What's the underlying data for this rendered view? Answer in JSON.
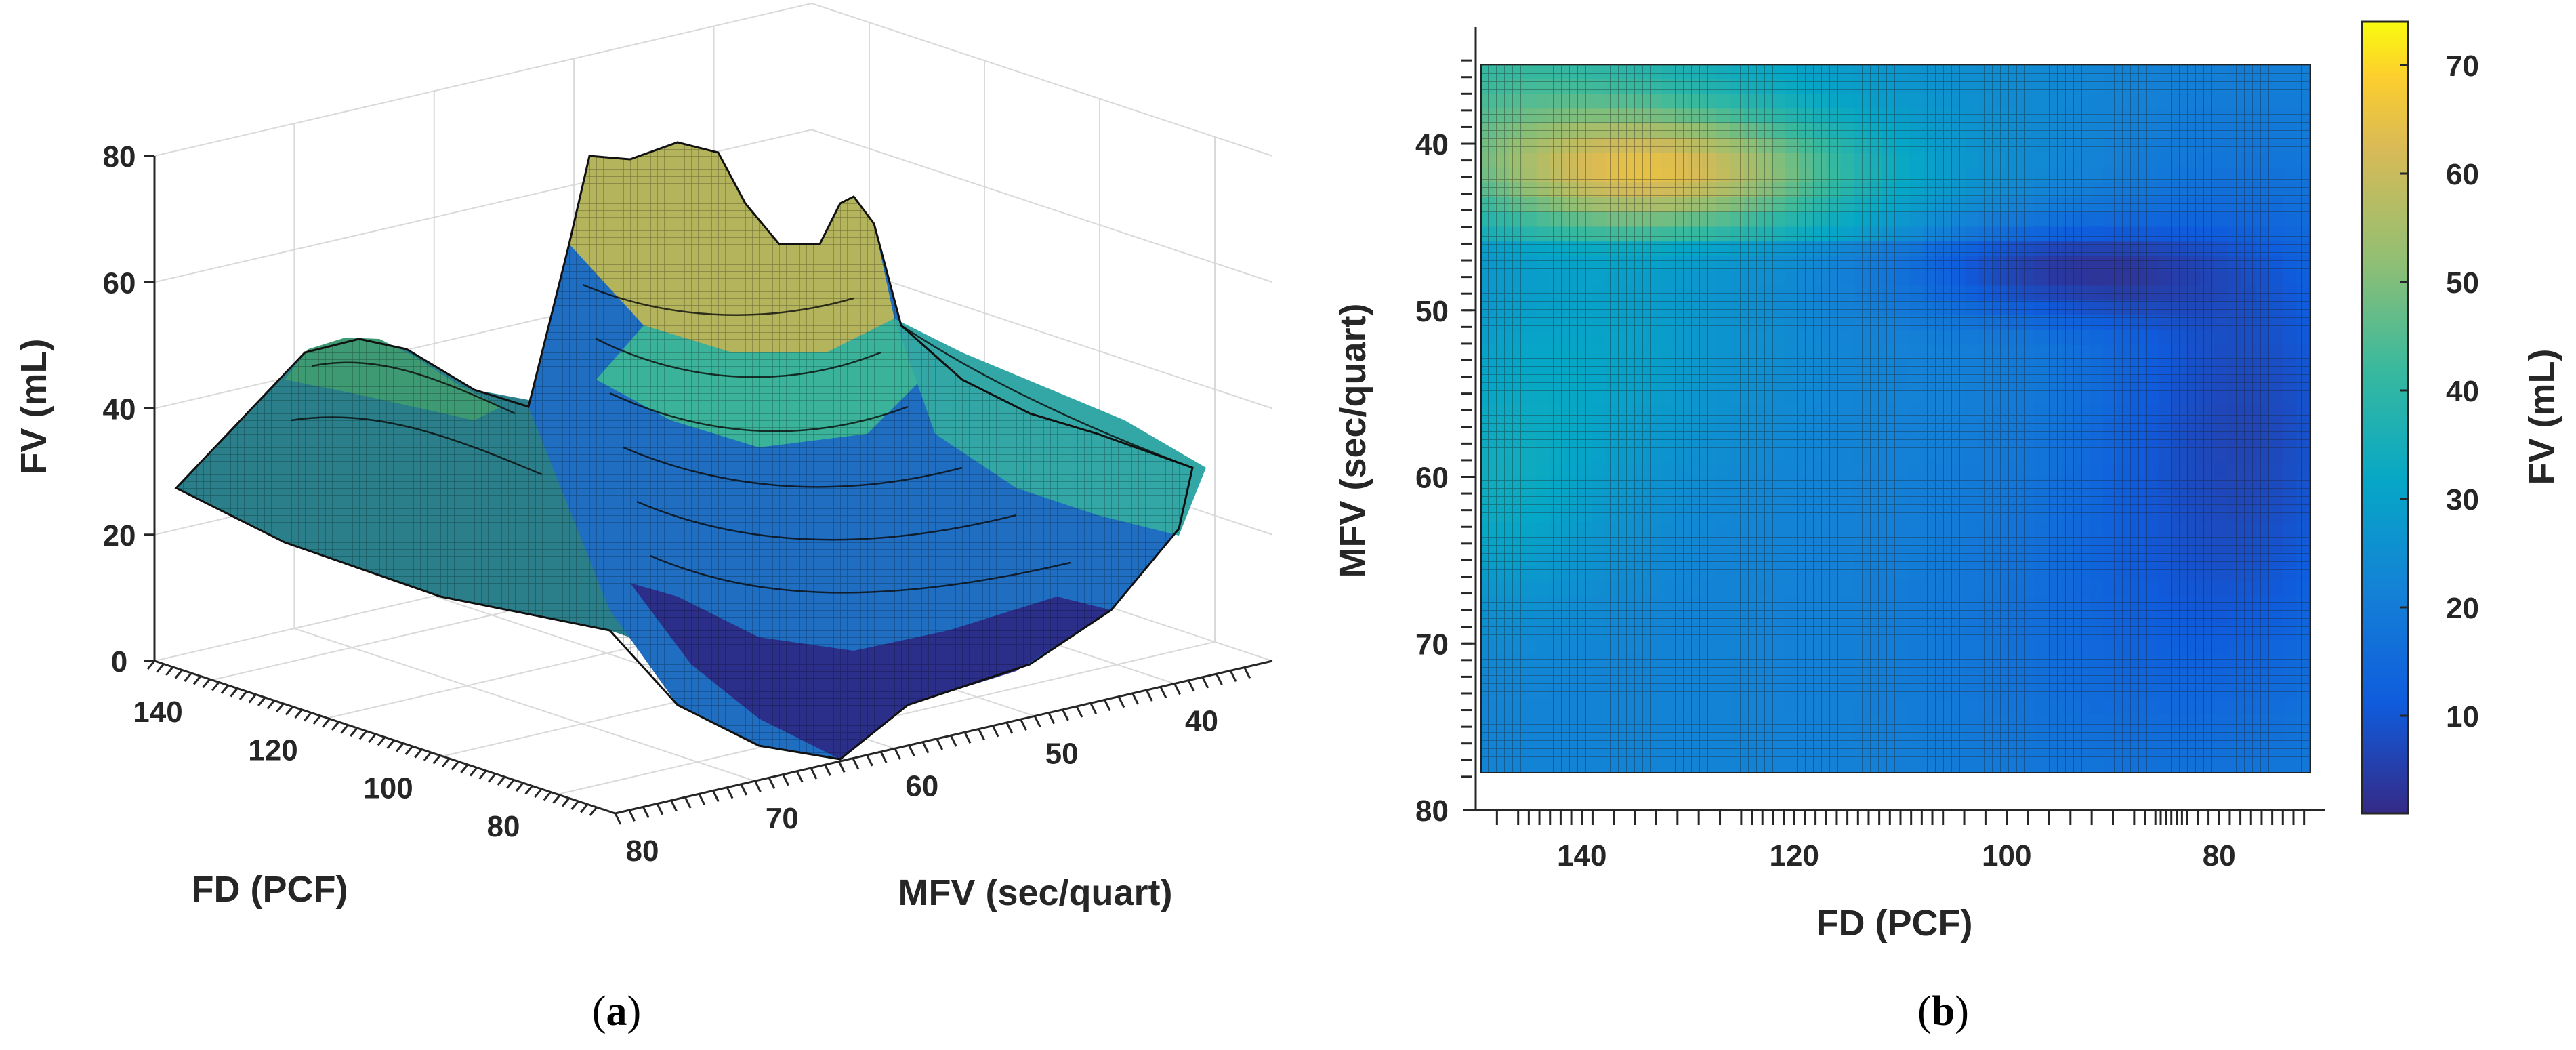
{
  "chart_data": [
    {
      "panel": "a",
      "type": "surface",
      "caption": {
        "open": "(",
        "letter": "a",
        "close": ")"
      },
      "title": "",
      "xlabel": "FD (PCF)",
      "ylabel": "MFV (sec/quart)",
      "zlabel": "FV (mL)",
      "x_ticks": [
        140,
        120,
        100,
        80
      ],
      "y_ticks": [
        40,
        50,
        60,
        70,
        80
      ],
      "z_ticks": [
        0,
        20,
        40,
        60,
        80
      ],
      "xlim": [
        70,
        150
      ],
      "ylim": [
        33,
        80
      ],
      "zlim": [
        0,
        80
      ],
      "grid": true,
      "colormap": "parula",
      "z_range": [
        2,
        74
      ]
    },
    {
      "panel": "b",
      "type": "heatmap",
      "caption": {
        "open": "(",
        "letter": "b",
        "close": ")"
      },
      "title": "",
      "xlabel": "FD (PCF)",
      "ylabel": "MFV (sec/quart)",
      "colorbar_label": "FV (mL)",
      "x_ticks": [
        140,
        120,
        100,
        80
      ],
      "y_ticks": [
        40,
        50,
        60,
        70,
        80
      ],
      "colorbar_ticks": [
        10,
        20,
        30,
        40,
        50,
        60,
        70
      ],
      "xlim": [
        150,
        70
      ],
      "ylim": [
        33,
        80
      ],
      "data_xlim": [
        148,
        72
      ],
      "data_ylim": [
        35,
        78
      ],
      "clim": [
        1,
        74
      ],
      "colormap": "parula",
      "x_rug": [
        148,
        146,
        145,
        144,
        143,
        142,
        141,
        140,
        139,
        137,
        135,
        133,
        131,
        129,
        127,
        125,
        124,
        123,
        122,
        121,
        120,
        119,
        118,
        117,
        116,
        115,
        114,
        113,
        112,
        111,
        110,
        109,
        108,
        107,
        106,
        104,
        102,
        100,
        98,
        96,
        94,
        92,
        90,
        88,
        87,
        86,
        85.5,
        85,
        84.5,
        84,
        83.5,
        83,
        82,
        81,
        80,
        79,
        78,
        77,
        76,
        75,
        74,
        73,
        72
      ],
      "y_rug": [
        35,
        36,
        37,
        38,
        39,
        40,
        41,
        42,
        43,
        44,
        45,
        46,
        47,
        48,
        49,
        50,
        51,
        52,
        53,
        54,
        55,
        56,
        57,
        58,
        59,
        60,
        61,
        62,
        63,
        64,
        65,
        66,
        67,
        68,
        69,
        70,
        71,
        72,
        73,
        74,
        75,
        76,
        77,
        78
      ]
    }
  ]
}
